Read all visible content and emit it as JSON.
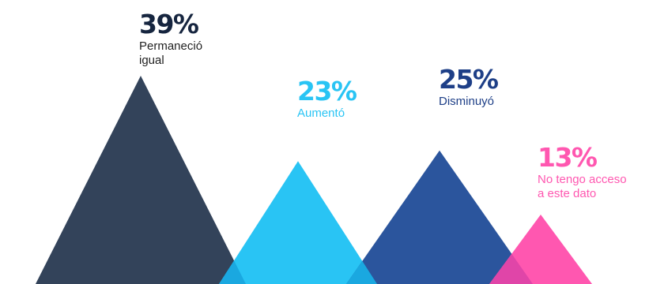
{
  "chart_data": {
    "type": "triangle-bar",
    "categories": [
      "Permaneció igual",
      "Aumentó",
      "Disminuyó",
      "No tengo acceso a este dato"
    ],
    "values": [
      39,
      23,
      25,
      13
    ],
    "value_labels": [
      "39%",
      "23%",
      "25%",
      "13%"
    ],
    "label_lines": [
      [
        "Permaneció",
        "igual"
      ],
      [
        "Aumentó"
      ],
      [
        "Disminuyó"
      ],
      [
        "No tengo acceso",
        "a este dato"
      ]
    ],
    "colors": [
      "#33435a",
      "#29c4f4",
      "#2b559d",
      "#ff57b0"
    ],
    "overlap_colors": [
      "#1aa8e0",
      "#1aa8e0",
      "#e045a8"
    ],
    "value_label_colors": [
      "#16253f",
      "#29c4f4",
      "#1e3f87",
      "#ff57b0"
    ],
    "category_label_colors": [
      "#222222",
      "#29c4f4",
      "#1e3f87",
      "#ff57b0"
    ],
    "title": "",
    "xlabel": "",
    "ylabel": "",
    "unit": "%"
  }
}
